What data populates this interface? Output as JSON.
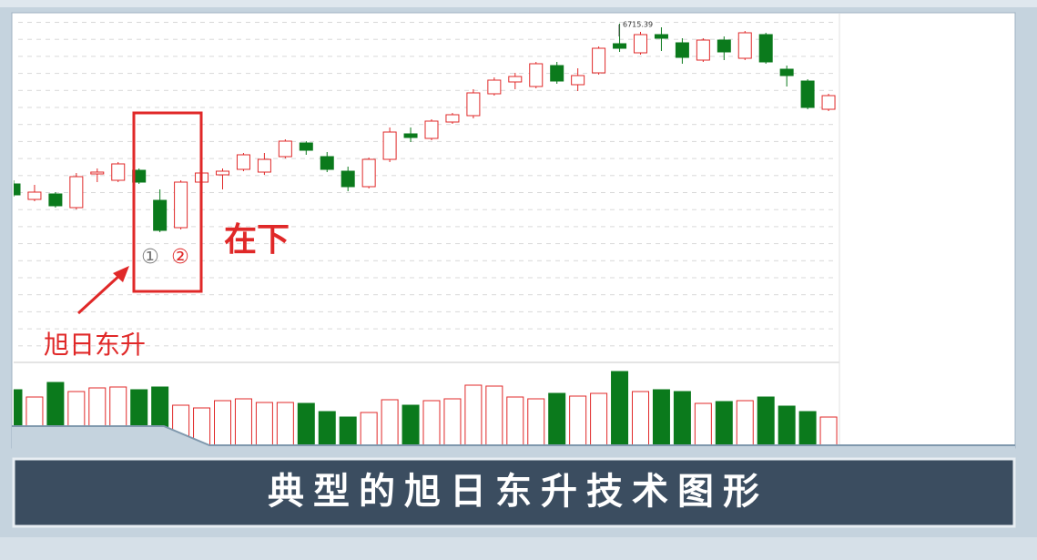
{
  "chart_data": {
    "type": "candlestick",
    "title": "典型的旭日东升技术图形",
    "up_color": "#e02828",
    "down_color": "#0b7a1c",
    "ylim": [
      3055,
      6795
    ],
    "volume_ylim": [
      0,
      90
    ],
    "open": [
      4955,
      4785,
      4845,
      4695,
      5065,
      4995,
      5105,
      4775,
      4475,
      4975,
      5055,
      5115,
      5085,
      5255,
      5405,
      5255,
      5095,
      4925,
      5225,
      5505,
      5455,
      5635,
      5705,
      5945,
      6075,
      6025,
      6255,
      6045,
      6175,
      6495,
      6395,
      6595,
      6505,
      6315,
      6535,
      6335,
      6595,
      6215,
      6085,
      5775
    ],
    "high": [
      4995,
      4945,
      4865,
      5075,
      5125,
      5195,
      5125,
      4895,
      4995,
      5125,
      5125,
      5295,
      5295,
      5445,
      5425,
      5305,
      5145,
      5245,
      5575,
      5575,
      5665,
      5735,
      5995,
      6125,
      6175,
      6295,
      6295,
      6225,
      6465,
      6715.39,
      6625,
      6675,
      6555,
      6555,
      6575,
      6635,
      6615,
      6255,
      6105,
      5945
    ],
    "low": [
      4815,
      4765,
      4695,
      4675,
      4975,
      4975,
      4955,
      4425,
      4455,
      4945,
      4895,
      5095,
      5055,
      5235,
      5275,
      5085,
      4875,
      4905,
      5195,
      5415,
      5435,
      5615,
      5675,
      5925,
      5995,
      6005,
      6055,
      5975,
      6155,
      6405,
      6375,
      6415,
      6275,
      6295,
      6315,
      6315,
      6275,
      6025,
      5775,
      5755
    ],
    "close": [
      4835,
      4865,
      4715,
      5035,
      5085,
      5175,
      4975,
      4445,
      4975,
      5075,
      5095,
      5275,
      5225,
      5425,
      5325,
      5115,
      4925,
      5225,
      5525,
      5465,
      5645,
      5715,
      5955,
      6095,
      6135,
      6275,
      6085,
      6145,
      6445,
      6445,
      6595,
      6555,
      6345,
      6535,
      6405,
      6615,
      6295,
      6145,
      5795,
      5925
    ],
    "volume": [
      62,
      54,
      70,
      60,
      64,
      65,
      62,
      65,
      45,
      42,
      50,
      52,
      48,
      48,
      47,
      38,
      32,
      37,
      51,
      45,
      50,
      52,
      67,
      66,
      54,
      52,
      58,
      55,
      58,
      82,
      60,
      62,
      60,
      47,
      49,
      50,
      54,
      44,
      38,
      32
    ],
    "annotations": {
      "peak_label": "6715.39",
      "marker_1": "①",
      "marker_2": "②",
      "position_note": "在下",
      "pattern_name": "旭日东升"
    }
  }
}
